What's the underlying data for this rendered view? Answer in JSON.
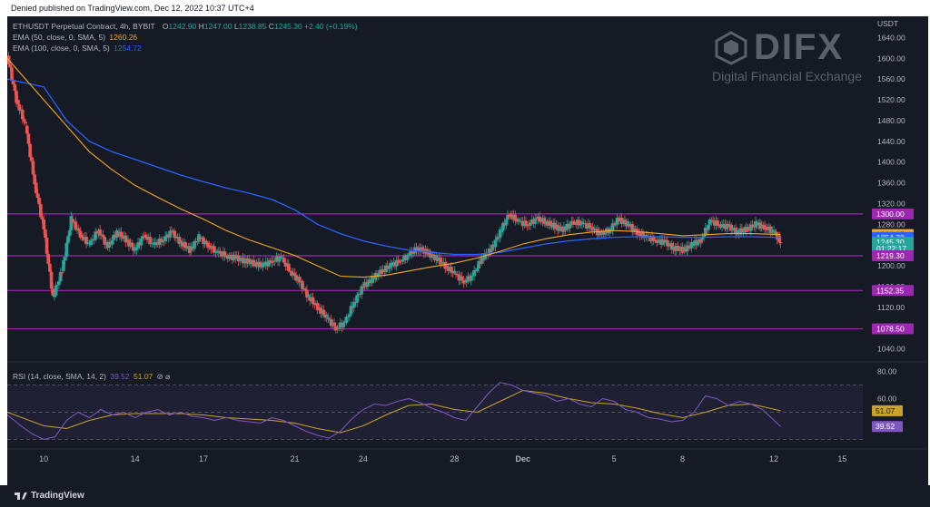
{
  "header": {
    "published": "Denied published on TradingView.com, Dec 12, 2022 10:37 UTC+4"
  },
  "legend": {
    "symbol": "ETHUSDT Perpetual Contract, 4h, BYBIT",
    "ohlc": [
      {
        "k": "O",
        "v": "1242.90"
      },
      {
        "k": "H",
        "v": "1247.00"
      },
      {
        "k": "L",
        "v": "1238.85"
      },
      {
        "k": "C",
        "v": "1245.30"
      }
    ],
    "change": "+2.40 (+0.19%)",
    "ema50_label": "EMA (50, close, 0, SMA, 5)",
    "ema50_value": "1260.26",
    "ema100_label": "EMA (100, close, 0, SMA, 5)",
    "ema100_value": "1254.72",
    "rsi_label": "RSI (14, close, SMA, 14, 2)",
    "rsi_value": "39.52",
    "rsi_ma_value": "51.07",
    "rsi_icons": "⊘ ⌀"
  },
  "watermark": {
    "brand": "DIFX",
    "tagline": "Digital Financial Exchange"
  },
  "footer": {
    "brand": "TradingView"
  },
  "colors": {
    "background": "#161a25",
    "up": "#26a69a",
    "down": "#ef5350",
    "ema50": "#f5a623",
    "ema100": "#2962ff",
    "level": "#9c27b0",
    "rsi": "#7e57c2",
    "rsi_ma": "#c9a227",
    "text": "#b2b5be"
  },
  "chart_data": {
    "type": "candlestick",
    "symbol": "ETHUSDT Perpetual Contract",
    "interval": "4h",
    "exchange": "BYBIT",
    "price_axis": {
      "unit": "USDT",
      "ticks": [
        1040,
        1080,
        1120,
        1160,
        1200,
        1240,
        1280,
        1320,
        1360,
        1400,
        1440,
        1480,
        1520,
        1560,
        1600,
        1640
      ],
      "tick_labels": [
        "1040.00",
        "1080.00",
        "1120.00",
        "1160.00",
        "1200.00",
        "1240.00",
        "1280.00",
        "1320.00",
        "1360.00",
        "1400.00",
        "1440.00",
        "1480.00",
        "1520.00",
        "1560.00",
        "1600.00",
        "1640.00"
      ],
      "range": [
        1020,
        1660
      ]
    },
    "time_axis": {
      "labels": [
        "10",
        "14",
        "17",
        "21",
        "24",
        "28",
        "Dec",
        "5",
        "8",
        "12",
        "15"
      ],
      "label_index": [
        0,
        4,
        7,
        11,
        14,
        18,
        21,
        25,
        28,
        32,
        35
      ],
      "day_range": [
        -1.6,
        35.9
      ]
    },
    "horizontal_levels": [
      1300.0,
      1219.3,
      1152.35,
      1078.5
    ],
    "horizontal_level_labels": [
      "1300.00",
      "1219.30",
      "1152.35",
      "1078.50"
    ],
    "price_labels": [
      {
        "text": "1300.00",
        "value": 1300.0,
        "kind": "level"
      },
      {
        "text": "1260.25",
        "value": 1260.25,
        "kind": "ema50"
      },
      {
        "text": "1254.70",
        "value": 1254.7,
        "kind": "ema100"
      },
      {
        "text": "1245.30",
        "value": 1245.3,
        "kind": "last"
      },
      {
        "text": "01:22:17",
        "value": 1233.0,
        "kind": "countdown"
      },
      {
        "text": "1219.30",
        "value": 1219.3,
        "kind": "level"
      },
      {
        "text": "1152.35",
        "value": 1152.35,
        "kind": "level"
      },
      {
        "text": "1078.50",
        "value": 1078.5,
        "kind": "level"
      }
    ],
    "close_path": [
      [
        -1.6,
        1605
      ],
      [
        -1.2,
        1520
      ],
      [
        -0.8,
        1470
      ],
      [
        -0.4,
        1360
      ],
      [
        0.0,
        1270
      ],
      [
        0.4,
        1140
      ],
      [
        0.8,
        1190
      ],
      [
        1.2,
        1290
      ],
      [
        1.6,
        1260
      ],
      [
        2.0,
        1240
      ],
      [
        2.4,
        1270
      ],
      [
        2.8,
        1235
      ],
      [
        3.2,
        1265
      ],
      [
        3.6,
        1250
      ],
      [
        4.0,
        1230
      ],
      [
        4.4,
        1260
      ],
      [
        4.8,
        1240
      ],
      [
        5.2,
        1250
      ],
      [
        5.6,
        1265
      ],
      [
        6.0,
        1245
      ],
      [
        6.4,
        1230
      ],
      [
        6.8,
        1255
      ],
      [
        7.2,
        1240
      ],
      [
        7.6,
        1225
      ],
      [
        8.0,
        1220
      ],
      [
        8.4,
        1215
      ],
      [
        8.8,
        1210
      ],
      [
        9.2,
        1205
      ],
      [
        9.6,
        1200
      ],
      [
        10.0,
        1210
      ],
      [
        10.4,
        1215
      ],
      [
        10.8,
        1190
      ],
      [
        11.2,
        1170
      ],
      [
        11.6,
        1140
      ],
      [
        12.0,
        1120
      ],
      [
        12.4,
        1100
      ],
      [
        12.8,
        1080
      ],
      [
        13.2,
        1090
      ],
      [
        13.6,
        1130
      ],
      [
        14.0,
        1160
      ],
      [
        14.4,
        1175
      ],
      [
        14.8,
        1190
      ],
      [
        15.2,
        1200
      ],
      [
        15.6,
        1210
      ],
      [
        16.0,
        1220
      ],
      [
        16.4,
        1235
      ],
      [
        16.8,
        1225
      ],
      [
        17.2,
        1215
      ],
      [
        17.6,
        1200
      ],
      [
        18.0,
        1185
      ],
      [
        18.4,
        1170
      ],
      [
        18.8,
        1180
      ],
      [
        19.2,
        1215
      ],
      [
        19.6,
        1230
      ],
      [
        20.0,
        1265
      ],
      [
        20.4,
        1300
      ],
      [
        20.8,
        1285
      ],
      [
        21.2,
        1280
      ],
      [
        21.6,
        1290
      ],
      [
        22.0,
        1285
      ],
      [
        22.4,
        1275
      ],
      [
        22.8,
        1270
      ],
      [
        23.2,
        1285
      ],
      [
        23.6,
        1280
      ],
      [
        24.0,
        1275
      ],
      [
        24.4,
        1260
      ],
      [
        24.8,
        1270
      ],
      [
        25.2,
        1290
      ],
      [
        25.6,
        1280
      ],
      [
        26.0,
        1265
      ],
      [
        26.4,
        1255
      ],
      [
        26.8,
        1250
      ],
      [
        27.2,
        1245
      ],
      [
        27.6,
        1235
      ],
      [
        28.0,
        1230
      ],
      [
        28.4,
        1240
      ],
      [
        28.8,
        1250
      ],
      [
        29.2,
        1285
      ],
      [
        29.6,
        1280
      ],
      [
        30.0,
        1275
      ],
      [
        30.4,
        1265
      ],
      [
        30.8,
        1270
      ],
      [
        31.2,
        1280
      ],
      [
        31.6,
        1275
      ],
      [
        32.0,
        1265
      ],
      [
        32.3,
        1245.3
      ]
    ],
    "ema50": [
      [
        -1.6,
        1600
      ],
      [
        0.0,
        1520
      ],
      [
        1.0,
        1470
      ],
      [
        2.0,
        1420
      ],
      [
        3.0,
        1385
      ],
      [
        4.0,
        1355
      ],
      [
        5.0,
        1332
      ],
      [
        6.0,
        1310
      ],
      [
        7.0,
        1290
      ],
      [
        8.0,
        1268
      ],
      [
        9.0,
        1250
      ],
      [
        10.0,
        1235
      ],
      [
        11.0,
        1220
      ],
      [
        12.0,
        1200
      ],
      [
        13.0,
        1180
      ],
      [
        14.0,
        1178
      ],
      [
        15.0,
        1182
      ],
      [
        16.0,
        1190
      ],
      [
        17.0,
        1198
      ],
      [
        18.0,
        1205
      ],
      [
        19.0,
        1215
      ],
      [
        20.0,
        1228
      ],
      [
        21.0,
        1242
      ],
      [
        22.0,
        1252
      ],
      [
        23.0,
        1260
      ],
      [
        24.0,
        1265
      ],
      [
        25.0,
        1268
      ],
      [
        26.0,
        1266
      ],
      [
        27.0,
        1262
      ],
      [
        28.0,
        1258
      ],
      [
        29.0,
        1260
      ],
      [
        30.0,
        1262
      ],
      [
        31.0,
        1262
      ],
      [
        32.3,
        1260.26
      ]
    ],
    "ema100": [
      [
        -1.6,
        1560
      ],
      [
        0.0,
        1545
      ],
      [
        1.0,
        1480
      ],
      [
        2.0,
        1440
      ],
      [
        3.0,
        1420
      ],
      [
        4.0,
        1405
      ],
      [
        5.0,
        1390
      ],
      [
        6.0,
        1375
      ],
      [
        7.0,
        1362
      ],
      [
        8.0,
        1350
      ],
      [
        9.0,
        1340
      ],
      [
        10.0,
        1328
      ],
      [
        11.0,
        1308
      ],
      [
        12.0,
        1280
      ],
      [
        13.0,
        1262
      ],
      [
        14.0,
        1248
      ],
      [
        15.0,
        1238
      ],
      [
        16.0,
        1230
      ],
      [
        17.0,
        1226
      ],
      [
        18.0,
        1222
      ],
      [
        19.0,
        1222
      ],
      [
        20.0,
        1226
      ],
      [
        21.0,
        1234
      ],
      [
        22.0,
        1242
      ],
      [
        23.0,
        1248
      ],
      [
        24.0,
        1252
      ],
      [
        25.0,
        1255
      ],
      [
        26.0,
        1256
      ],
      [
        27.0,
        1256
      ],
      [
        28.0,
        1255
      ],
      [
        29.0,
        1255
      ],
      [
        30.0,
        1256
      ],
      [
        31.0,
        1256
      ],
      [
        32.3,
        1254.72
      ]
    ],
    "rsi_panel": {
      "ticks": [
        40,
        60,
        80
      ],
      "tick_labels": [
        "40.00",
        "60.00",
        "80.00"
      ],
      "range": [
        25,
        85
      ],
      "band": [
        30,
        70
      ],
      "midline": 50,
      "rsi": [
        [
          -1.6,
          48
        ],
        [
          -1.0,
          40
        ],
        [
          -0.5,
          34
        ],
        [
          0.0,
          30
        ],
        [
          0.5,
          32
        ],
        [
          1.0,
          44
        ],
        [
          1.5,
          50
        ],
        [
          2.0,
          46
        ],
        [
          2.5,
          52
        ],
        [
          3.0,
          48
        ],
        [
          3.5,
          50
        ],
        [
          4.0,
          46
        ],
        [
          4.5,
          50
        ],
        [
          5.0,
          52
        ],
        [
          5.5,
          48
        ],
        [
          6.0,
          50
        ],
        [
          6.5,
          47
        ],
        [
          7.0,
          46
        ],
        [
          7.5,
          44
        ],
        [
          8.0,
          46
        ],
        [
          8.5,
          44
        ],
        [
          9.0,
          43
        ],
        [
          9.5,
          42
        ],
        [
          10.0,
          46
        ],
        [
          10.5,
          44
        ],
        [
          11.0,
          40
        ],
        [
          11.5,
          36
        ],
        [
          12.0,
          33
        ],
        [
          12.5,
          31
        ],
        [
          13.0,
          36
        ],
        [
          13.5,
          45
        ],
        [
          14.0,
          52
        ],
        [
          14.5,
          56
        ],
        [
          15.0,
          55
        ],
        [
          15.5,
          58
        ],
        [
          16.0,
          60
        ],
        [
          16.5,
          57
        ],
        [
          17.0,
          53
        ],
        [
          17.5,
          50
        ],
        [
          18.0,
          46
        ],
        [
          18.5,
          44
        ],
        [
          19.0,
          54
        ],
        [
          19.5,
          64
        ],
        [
          20.0,
          72
        ],
        [
          20.5,
          70
        ],
        [
          21.0,
          66
        ],
        [
          21.5,
          64
        ],
        [
          22.0,
          62
        ],
        [
          22.5,
          58
        ],
        [
          23.0,
          60
        ],
        [
          23.5,
          56
        ],
        [
          24.0,
          54
        ],
        [
          24.5,
          60
        ],
        [
          25.0,
          58
        ],
        [
          25.5,
          52
        ],
        [
          26.0,
          50
        ],
        [
          26.5,
          46
        ],
        [
          27.0,
          45
        ],
        [
          27.5,
          43
        ],
        [
          28.0,
          44
        ],
        [
          28.5,
          50
        ],
        [
          29.0,
          62
        ],
        [
          29.5,
          60
        ],
        [
          30.0,
          55
        ],
        [
          30.5,
          58
        ],
        [
          31.0,
          56
        ],
        [
          31.5,
          52
        ],
        [
          32.3,
          39.52
        ]
      ],
      "rsi_ma": [
        [
          -1.6,
          50
        ],
        [
          0.0,
          40
        ],
        [
          1.0,
          38
        ],
        [
          2.0,
          44
        ],
        [
          3.0,
          48
        ],
        [
          4.0,
          49
        ],
        [
          5.0,
          49
        ],
        [
          6.0,
          49
        ],
        [
          7.0,
          48
        ],
        [
          8.0,
          46
        ],
        [
          9.0,
          45
        ],
        [
          10.0,
          44
        ],
        [
          11.0,
          42
        ],
        [
          12.0,
          38
        ],
        [
          13.0,
          35
        ],
        [
          14.0,
          40
        ],
        [
          15.0,
          48
        ],
        [
          16.0,
          55
        ],
        [
          17.0,
          56
        ],
        [
          18.0,
          52
        ],
        [
          19.0,
          50
        ],
        [
          20.0,
          58
        ],
        [
          21.0,
          66
        ],
        [
          22.0,
          64
        ],
        [
          23.0,
          60
        ],
        [
          24.0,
          57
        ],
        [
          25.0,
          56
        ],
        [
          26.0,
          53
        ],
        [
          27.0,
          49
        ],
        [
          28.0,
          46
        ],
        [
          29.0,
          50
        ],
        [
          30.0,
          55
        ],
        [
          31.0,
          56
        ],
        [
          32.3,
          51.07
        ]
      ]
    }
  }
}
